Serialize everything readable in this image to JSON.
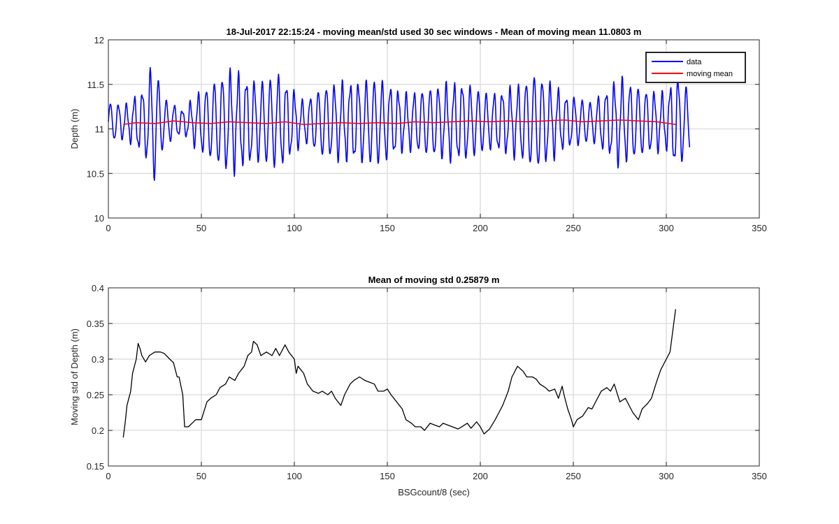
{
  "chart_data": [
    {
      "type": "line",
      "title": "18-Jul-2017 22:15:24 - moving mean/std used 30 sec windows - Mean of moving mean 11.0803 m",
      "xlabel": "",
      "ylabel": "Depth (m)",
      "xlim": [
        0,
        350
      ],
      "ylim": [
        10,
        12
      ],
      "xticks": [
        0,
        50,
        100,
        150,
        200,
        250,
        300,
        350
      ],
      "yticks": [
        10,
        10.5,
        11,
        11.5,
        12
      ],
      "xtick_labels": [
        "0",
        "50",
        "100",
        "150",
        "200",
        "250",
        "300",
        "350"
      ],
      "ytick_labels": [
        "10",
        "10.5",
        "11",
        "11.5",
        "12"
      ],
      "grid": true,
      "legend_position": "top-right",
      "series": [
        {
          "name": "data",
          "color": "#0000ff",
          "signal": {
            "x_start": 0,
            "x_end": 312.5,
            "dt": 0.25,
            "mean": 11.08,
            "period": 4.3,
            "amplitude_points": [
              [
                0,
                0.25
              ],
              [
                10,
                0.22
              ],
              [
                20,
                0.45
              ],
              [
                24,
                0.8
              ],
              [
                30,
                0.3
              ],
              [
                40,
                0.15
              ],
              [
                50,
                0.4
              ],
              [
                65,
                0.65
              ],
              [
                80,
                0.5
              ],
              [
                92,
                0.6
              ],
              [
                105,
                0.25
              ],
              [
                115,
                0.45
              ],
              [
                130,
                0.5
              ],
              [
                145,
                0.55
              ],
              [
                160,
                0.35
              ],
              [
                175,
                0.45
              ],
              [
                190,
                0.5
              ],
              [
                205,
                0.35
              ],
              [
                220,
                0.45
              ],
              [
                230,
                0.62
              ],
              [
                245,
                0.35
              ],
              [
                260,
                0.25
              ],
              [
                275,
                0.55
              ],
              [
                290,
                0.4
              ],
              [
                300,
                0.35
              ],
              [
                305,
                0.6
              ],
              [
                312.5,
                0.4
              ]
            ]
          }
        },
        {
          "name": "moving mean",
          "color": "#ff0000",
          "x": [
            8,
            15,
            25,
            35,
            45,
            55,
            65,
            75,
            85,
            95,
            105,
            115,
            125,
            135,
            145,
            155,
            165,
            175,
            185,
            195,
            205,
            215,
            225,
            235,
            245,
            255,
            265,
            275,
            285,
            295,
            305
          ],
          "y": [
            11.05,
            11.07,
            11.06,
            11.09,
            11.07,
            11.06,
            11.08,
            11.07,
            11.06,
            11.08,
            11.05,
            11.06,
            11.07,
            11.06,
            11.07,
            11.06,
            11.08,
            11.07,
            11.08,
            11.09,
            11.08,
            11.09,
            11.08,
            11.09,
            11.1,
            11.08,
            11.09,
            11.1,
            11.09,
            11.08,
            11.05
          ]
        }
      ]
    },
    {
      "type": "line",
      "title": "Mean of moving std 0.25879 m",
      "xlabel": "BSGcount/8 (sec)",
      "ylabel": "Moving std of Depth (m)",
      "xlim": [
        0,
        350
      ],
      "ylim": [
        0.15,
        0.4
      ],
      "xticks": [
        0,
        50,
        100,
        150,
        200,
        250,
        300,
        350
      ],
      "yticks": [
        0.15,
        0.2,
        0.25,
        0.3,
        0.35,
        0.4
      ],
      "xtick_labels": [
        "0",
        "50",
        "100",
        "150",
        "200",
        "250",
        "300",
        "350"
      ],
      "ytick_labels": [
        "0.15",
        "0.2",
        "0.25",
        "0.3",
        "0.35",
        "0.4"
      ],
      "grid": true,
      "series": [
        {
          "color": "#000000",
          "x": [
            8,
            9,
            10,
            12,
            13,
            15,
            16,
            17,
            18,
            20,
            22,
            25,
            28,
            30,
            33,
            35,
            37,
            38,
            40,
            41,
            43,
            45,
            47,
            50,
            53,
            55,
            58,
            60,
            63,
            65,
            68,
            70,
            73,
            75,
            77,
            78,
            80,
            82,
            85,
            88,
            90,
            92,
            95,
            97,
            100,
            101,
            102,
            105,
            107,
            110,
            113,
            115,
            118,
            120,
            122,
            125,
            127,
            130,
            132,
            135,
            138,
            140,
            143,
            145,
            148,
            150,
            152,
            155,
            158,
            160,
            163,
            165,
            168,
            170,
            173,
            175,
            178,
            180,
            183,
            185,
            188,
            190,
            193,
            195,
            198,
            200,
            202,
            205,
            208,
            210,
            212,
            215,
            217,
            220,
            223,
            225,
            228,
            230,
            232,
            235,
            237,
            240,
            242,
            244,
            245,
            247,
            249,
            250,
            252,
            255,
            258,
            260,
            263,
            265,
            268,
            270,
            272,
            275,
            278,
            280,
            282,
            285,
            287,
            290,
            292,
            295,
            297,
            300,
            302,
            303,
            304,
            305
          ],
          "y": [
            0.19,
            0.21,
            0.235,
            0.255,
            0.28,
            0.3,
            0.322,
            0.315,
            0.305,
            0.296,
            0.305,
            0.31,
            0.31,
            0.308,
            0.3,
            0.295,
            0.275,
            0.275,
            0.25,
            0.205,
            0.205,
            0.21,
            0.215,
            0.215,
            0.24,
            0.245,
            0.25,
            0.26,
            0.265,
            0.275,
            0.27,
            0.28,
            0.29,
            0.305,
            0.31,
            0.325,
            0.32,
            0.305,
            0.31,
            0.305,
            0.315,
            0.305,
            0.32,
            0.31,
            0.3,
            0.28,
            0.29,
            0.28,
            0.265,
            0.255,
            0.252,
            0.255,
            0.25,
            0.255,
            0.245,
            0.235,
            0.25,
            0.265,
            0.27,
            0.275,
            0.27,
            0.268,
            0.265,
            0.255,
            0.255,
            0.258,
            0.25,
            0.24,
            0.23,
            0.215,
            0.21,
            0.205,
            0.205,
            0.2,
            0.21,
            0.208,
            0.205,
            0.21,
            0.207,
            0.205,
            0.202,
            0.205,
            0.21,
            0.203,
            0.212,
            0.205,
            0.195,
            0.202,
            0.215,
            0.225,
            0.235,
            0.255,
            0.275,
            0.29,
            0.283,
            0.275,
            0.275,
            0.272,
            0.265,
            0.26,
            0.255,
            0.258,
            0.245,
            0.262,
            0.25,
            0.23,
            0.215,
            0.205,
            0.215,
            0.22,
            0.232,
            0.23,
            0.245,
            0.255,
            0.26,
            0.255,
            0.265,
            0.24,
            0.245,
            0.235,
            0.225,
            0.215,
            0.23,
            0.238,
            0.245,
            0.27,
            0.285,
            0.3,
            0.31,
            0.33,
            0.35,
            0.37
          ]
        }
      ]
    }
  ]
}
